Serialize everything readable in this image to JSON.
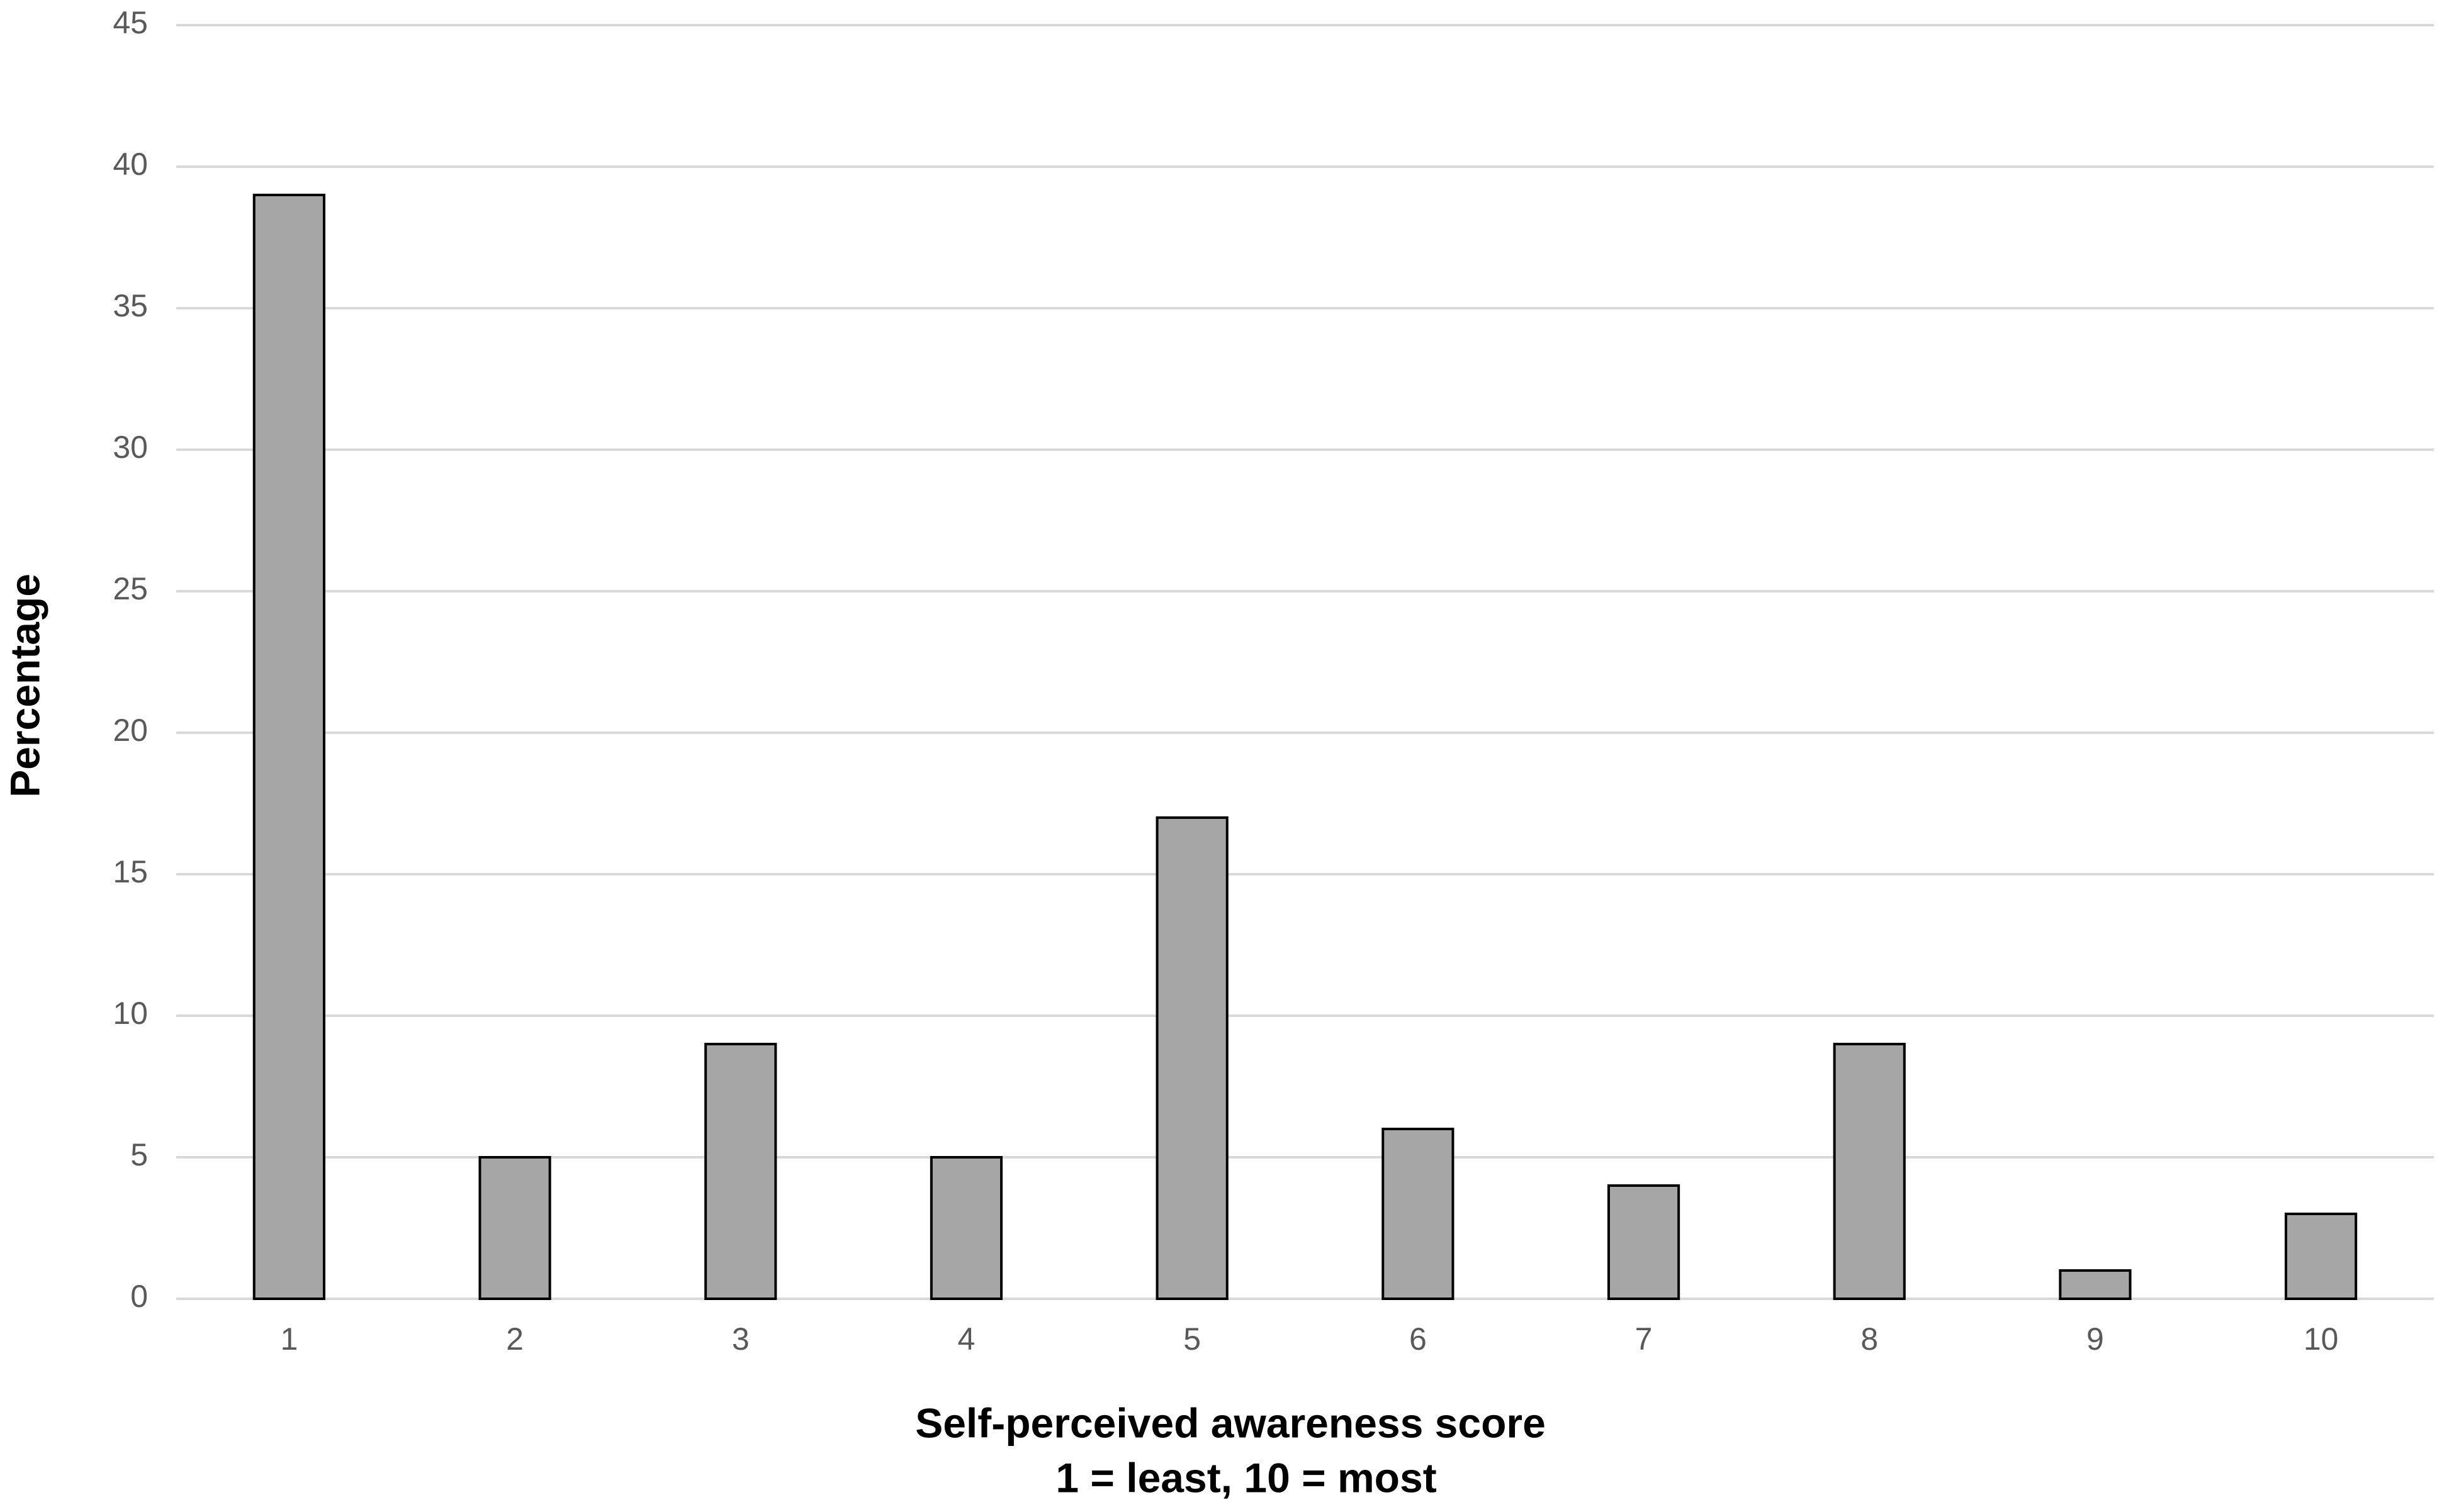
{
  "chart_data": {
    "type": "bar",
    "categories": [
      "1",
      "2",
      "3",
      "4",
      "5",
      "6",
      "7",
      "8",
      "9",
      "10"
    ],
    "values": [
      39,
      5,
      9,
      5,
      17,
      6,
      4,
      9,
      1,
      3
    ],
    "color": "#a6a6a6",
    "y_label": "Percentage",
    "x_label": [
      "Self-perceived awareness score",
      "1 = least, 10 = most"
    ],
    "ylim": [
      0,
      45
    ],
    "yticks": [
      0,
      5,
      10,
      15,
      20,
      25,
      30,
      35,
      40,
      45
    ],
    "grid": true
  }
}
